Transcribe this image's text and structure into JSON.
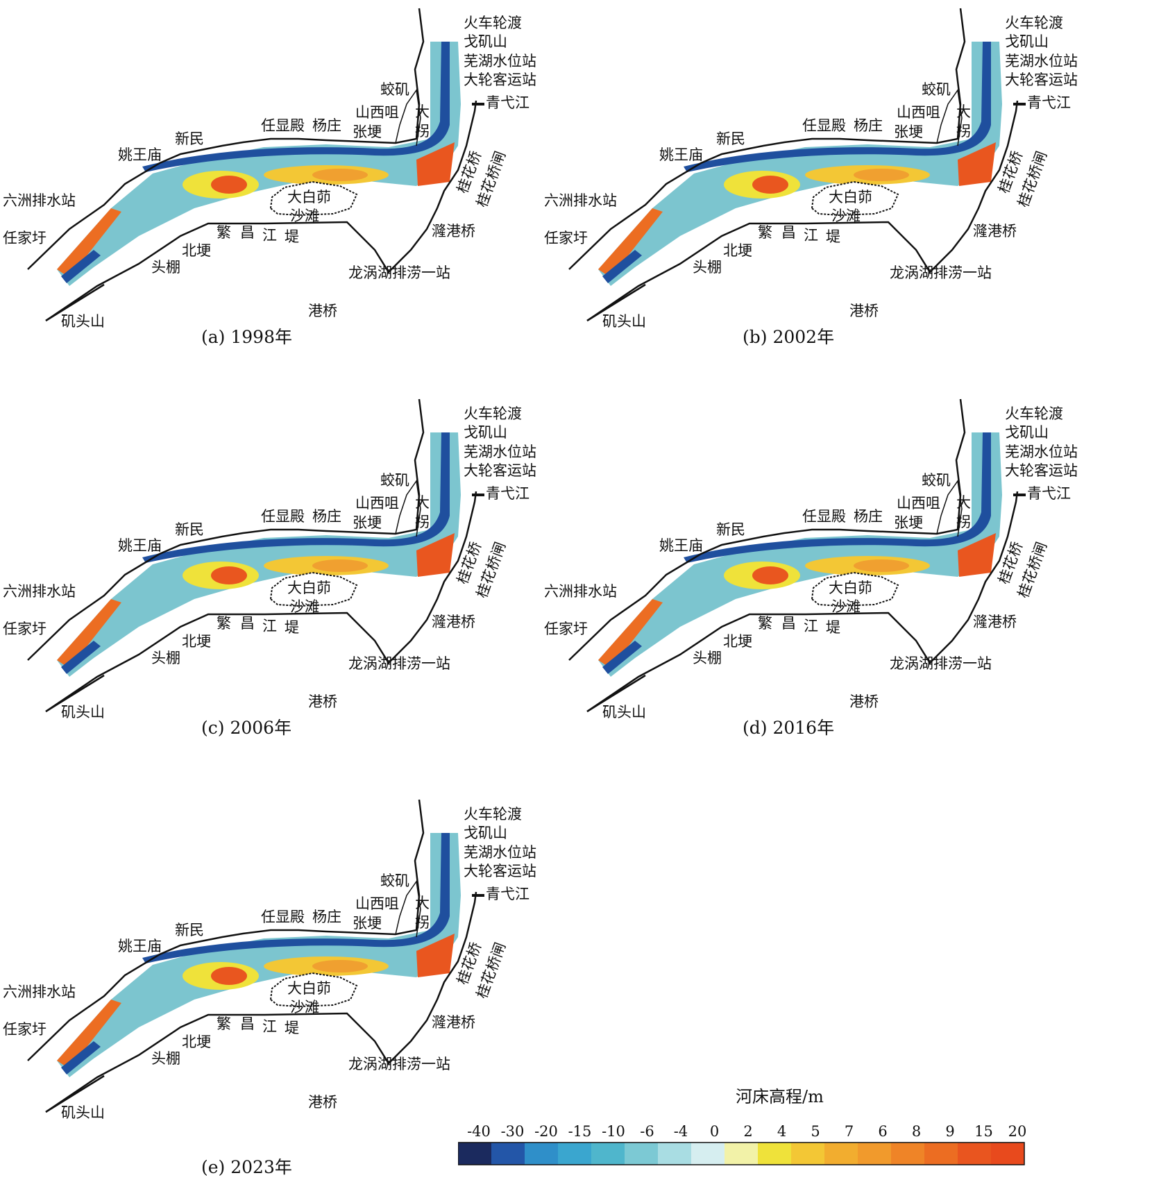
{
  "labels": {
    "huoche": "火车轮渡",
    "gejishan": "戈矶山",
    "wuhu_station": "芜湖水位站",
    "dalun": "大轮客运站",
    "qingyijiang": "青弋江",
    "jiaoji": "蛟矶",
    "shanxiju": "山西咀",
    "zhanggeng": "张埂",
    "dagua_1": "大",
    "dagua_2": "拐",
    "renxiandian": "任显殿",
    "yangzhuang": "杨庄",
    "xinmin": "新民",
    "yaowangmiao": "姚王庙",
    "liuzhou": "六洲排水站",
    "renjiayu": "任家圩",
    "jitoushan": "矶头山",
    "beigeng": "北埂",
    "toupeng": "头棚",
    "gangqiao": "港桥",
    "longwohu": "龙涡湖排涝一站",
    "fan": "繁",
    "chang": "昌",
    "jiang": "江",
    "di": "堤",
    "dabaiti_1": "大白茆",
    "dabaiti_2": "沙滩",
    "guihuaqiao": "桂花桥",
    "guihuaqiaozha": "桂花桥闸",
    "luganqiao": "漋港桥"
  },
  "panels": [
    {
      "caption": "(a) 1998年"
    },
    {
      "caption": "(b) 2002年"
    },
    {
      "caption": "(c) 2006年"
    },
    {
      "caption": "(d) 2016年"
    },
    {
      "caption": "(e) 2023年"
    }
  ],
  "legend": {
    "title": "河床高程/m",
    "ticks": [
      "-40",
      "-30",
      "-20",
      "-15",
      "-10",
      "-6",
      "-4",
      "0",
      "2",
      "4",
      "5",
      "7",
      "6",
      "8",
      "9",
      "15",
      "20"
    ],
    "colors": [
      "#1b2a5e",
      "#2356a8",
      "#2f8fc9",
      "#3aa6cf",
      "#4fb6cc",
      "#7cc9d4",
      "#a9dde3",
      "#d6eef0",
      "#f2f2a8",
      "#efe23a",
      "#f3c735",
      "#f2ad2f",
      "#f19a2c",
      "#ef8427",
      "#ec6d22",
      "#e9551f",
      "#e84a1d"
    ]
  },
  "colors": {
    "deep": "#1f4f9e",
    "channel": "#3f9fd0",
    "shallow": "#7cc5cf",
    "bar": "#f0a030",
    "high": "#e9561f",
    "bank": "#111111"
  }
}
